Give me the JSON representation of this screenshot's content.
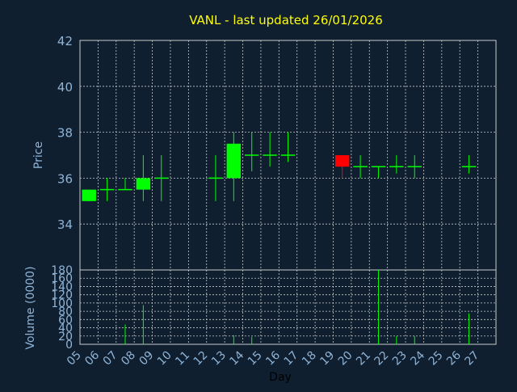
{
  "chart_data": [
    {
      "type": "candlestick",
      "title": "VANL - last updated 26/01/2026",
      "ylabel": "Price",
      "ylim": [
        32,
        42
      ],
      "yticks": [
        34,
        36,
        38,
        40,
        42
      ],
      "grid": true,
      "x_ticks": [
        "05",
        "06",
        "07",
        "08",
        "09",
        "10",
        "11",
        "12",
        "13",
        "14",
        "15",
        "16",
        "17",
        "18",
        "19",
        "20",
        "21",
        "22",
        "23",
        "24",
        "25",
        "26",
        "27"
      ],
      "candles": [
        {
          "day": "05",
          "open": 35.0,
          "high": 35.5,
          "low": 35.0,
          "close": 35.5
        },
        {
          "day": "06",
          "open": 35.5,
          "high": 36.0,
          "low": 35.0,
          "close": 35.5
        },
        {
          "day": "07",
          "open": 35.5,
          "high": 36.0,
          "low": 35.5,
          "close": 35.5
        },
        {
          "day": "08",
          "open": 35.5,
          "high": 37.0,
          "low": 35.0,
          "close": 36.0
        },
        {
          "day": "09",
          "open": 36.0,
          "high": 37.0,
          "low": 35.0,
          "close": 36.0
        },
        {
          "day": "12",
          "open": 36.0,
          "high": 37.0,
          "low": 35.0,
          "close": 36.0
        },
        {
          "day": "13",
          "open": 36.0,
          "high": 38.0,
          "low": 35.0,
          "close": 37.5
        },
        {
          "day": "14",
          "open": 37.0,
          "high": 38.0,
          "low": 36.3,
          "close": 37.0
        },
        {
          "day": "15",
          "open": 37.0,
          "high": 38.0,
          "low": 36.5,
          "close": 37.0
        },
        {
          "day": "16",
          "open": 37.0,
          "high": 38.0,
          "low": 36.7,
          "close": 37.0
        },
        {
          "day": "19",
          "open": 37.0,
          "high": 37.0,
          "low": 36.0,
          "close": 36.5
        },
        {
          "day": "20",
          "open": 36.5,
          "high": 37.0,
          "low": 36.0,
          "close": 36.5
        },
        {
          "day": "21",
          "open": 36.5,
          "high": 36.5,
          "low": 36.0,
          "close": 36.5
        },
        {
          "day": "22",
          "open": 36.5,
          "high": 37.0,
          "low": 36.2,
          "close": 36.5
        },
        {
          "day": "23",
          "open": 36.5,
          "high": 37.0,
          "low": 36.0,
          "close": 36.5
        },
        {
          "day": "26",
          "open": 36.5,
          "high": 37.0,
          "low": 36.2,
          "close": 36.5
        }
      ],
      "colors": {
        "up": "#00ff00",
        "down": "#ff0000",
        "title": "#ffff00",
        "axis_text": "#8fb4d6",
        "grid": "#c8c8c8",
        "background": "#0f1f30"
      }
    },
    {
      "type": "bar",
      "ylabel": "Volume (0000)",
      "xlabel": "Day",
      "ylim": [
        0,
        180
      ],
      "yticks": [
        0,
        20,
        40,
        60,
        80,
        100,
        120,
        140,
        160,
        180
      ],
      "categories": [
        "05",
        "06",
        "07",
        "08",
        "09",
        "12",
        "13",
        "14",
        "15",
        "16",
        "19",
        "20",
        "21",
        "22",
        "23",
        "26"
      ],
      "values": [
        0,
        0,
        48,
        95,
        0,
        0,
        22,
        18,
        0,
        0,
        0,
        0,
        180,
        20,
        20,
        75
      ],
      "color": "#00ff00"
    }
  ]
}
